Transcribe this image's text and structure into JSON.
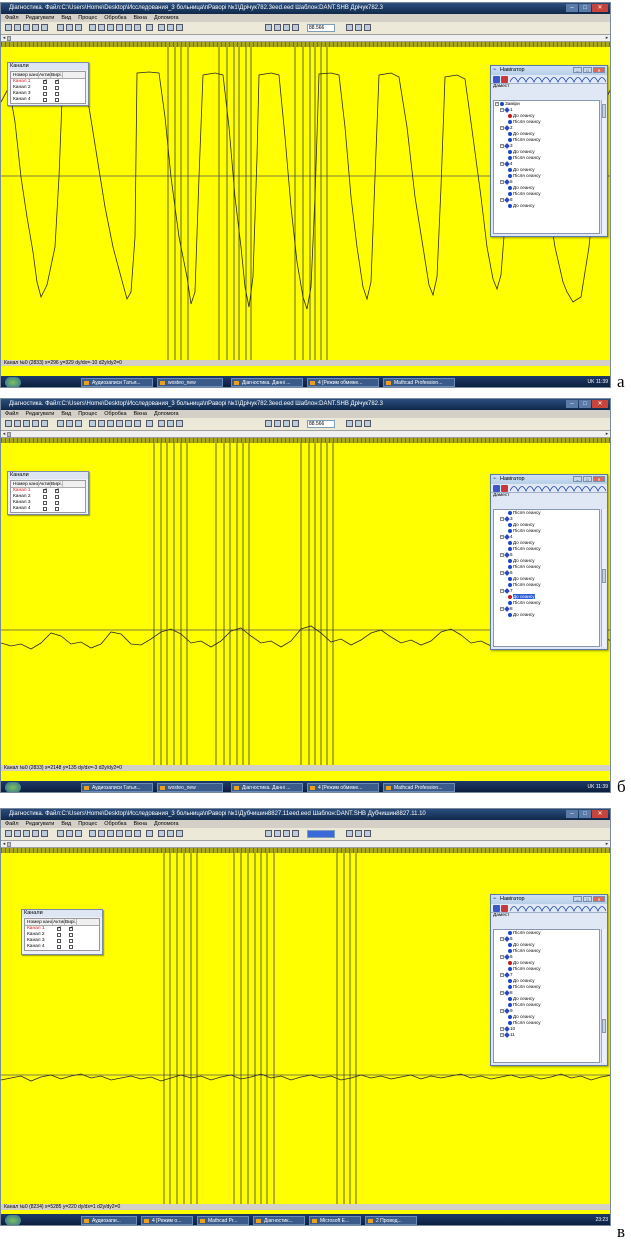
{
  "screens": [
    {
      "id": "a",
      "caption": "а",
      "title": "Діагностика. Файл:C:\\Users\\Home\\Desktop\\Исследования_3 больница\\пРавоpi №1\\Дрічук782.3eed.eed Шаблон:DANT.SHB  Дрічук782.3",
      "menu": [
        "Файл",
        "Редагувати",
        "Вид",
        "Процес",
        "Обробка",
        "Вікна",
        "Допомога"
      ],
      "zoom_value": "88.566",
      "status": "Канал №0 (2833) x=296 y=329  dy/dx=-10  d2y/dy2=0",
      "taskbar_buttons": [
        "Аудиозаписи Татья...",
        "wosteo_new",
        "Діагностика. Данні ...",
        "4 [Режим обмеже...",
        "Mathcad Profession..."
      ],
      "clock": "11:39",
      "tray_lang": "UK",
      "channels": {
        "title": "Канали",
        "headers": [
          "Номер каналу",
          "Актив...",
          "Вирі..."
        ],
        "rows": [
          {
            "name": "Канал 1",
            "active": true,
            "visible": true
          },
          {
            "name": "Канал 2",
            "active": false,
            "visible": false
          },
          {
            "name": "Канал 3",
            "active": false,
            "visible": false
          },
          {
            "name": "Канал 4",
            "active": false,
            "visible": false
          }
        ]
      },
      "navigator": {
        "title": "Навігатор",
        "label": "Дамест",
        "tree": [
          {
            "kind": "root",
            "text": "Заміри"
          },
          {
            "kind": "group",
            "text": "1"
          },
          {
            "kind": "leaf",
            "text": "До сеансу",
            "red": true
          },
          {
            "kind": "leaf",
            "text": "Після сеансу"
          },
          {
            "kind": "group",
            "text": "2"
          },
          {
            "kind": "leaf",
            "text": "До сеансу"
          },
          {
            "kind": "leaf",
            "text": "Після сеансу"
          },
          {
            "kind": "group",
            "text": "3"
          },
          {
            "kind": "leaf",
            "text": "До сеансу"
          },
          {
            "kind": "leaf",
            "text": "Після сеансу"
          },
          {
            "kind": "group",
            "text": "4"
          },
          {
            "kind": "leaf",
            "text": "До сеансу"
          },
          {
            "kind": "leaf",
            "text": "Після сеансу"
          },
          {
            "kind": "group",
            "text": "5"
          },
          {
            "kind": "leaf",
            "text": "До сеансу"
          },
          {
            "kind": "leaf",
            "text": "Після сеансу"
          },
          {
            "kind": "group",
            "text": "6"
          },
          {
            "kind": "leaf",
            "text": "До сеансу"
          }
        ]
      }
    },
    {
      "id": "b",
      "caption": "б",
      "title": "Діагностика. Файл:C:\\Users\\Home\\Desktop\\Исследования_3 больница\\пРавоpi №1\\Дрічук782.3eed.eed Шаблон:DANT.SHB  Дрічук782.3",
      "menu": [
        "Файл",
        "Редагувати",
        "Вид",
        "Процес",
        "Обробка",
        "Вікна",
        "Допомога"
      ],
      "zoom_value": "88.566",
      "status": "Канал №0 (2833) x=2148 y=135  dy/dx=-3  d2y/dy2=0",
      "taskbar_buttons": [
        "Аудиозаписи Татья...",
        "wosteo_new",
        "Діагностика. Данні ...",
        "4 [Режим обмеже...",
        "Mathcad Profession..."
      ],
      "clock": "11:39",
      "tray_lang": "UK",
      "channels": {
        "title": "Канали",
        "headers": [
          "Номер каналу",
          "Актив...",
          "Вирі..."
        ],
        "rows": [
          {
            "name": "Канал 1",
            "active": true,
            "visible": true
          },
          {
            "name": "Канал 2",
            "active": false,
            "visible": false
          },
          {
            "name": "Канал 3",
            "active": false,
            "visible": false
          },
          {
            "name": "Канал 4",
            "active": false,
            "visible": false
          }
        ]
      },
      "navigator": {
        "title": "Навігатор",
        "label": "Дамест",
        "tree": [
          {
            "kind": "leaf",
            "text": "Після сеансу"
          },
          {
            "kind": "group",
            "text": "3"
          },
          {
            "kind": "leaf",
            "text": "До сеансу"
          },
          {
            "kind": "leaf",
            "text": "Після сеансу"
          },
          {
            "kind": "group",
            "text": "4"
          },
          {
            "kind": "leaf",
            "text": "До сеансу"
          },
          {
            "kind": "leaf",
            "text": "Після сеансу"
          },
          {
            "kind": "group",
            "text": "5"
          },
          {
            "kind": "leaf",
            "text": "До сеансу"
          },
          {
            "kind": "leaf",
            "text": "Після сеансу"
          },
          {
            "kind": "group",
            "text": "6"
          },
          {
            "kind": "leaf",
            "text": "До сеансу"
          },
          {
            "kind": "leaf",
            "text": "Після сеансу"
          },
          {
            "kind": "group",
            "text": "7"
          },
          {
            "kind": "leaf",
            "text": "До сеансу",
            "red": true,
            "selected": true
          },
          {
            "kind": "leaf",
            "text": "Після сеансу"
          },
          {
            "kind": "group",
            "text": "8"
          },
          {
            "kind": "leaf",
            "text": "До сеансу"
          }
        ]
      }
    },
    {
      "id": "c",
      "caption": "в",
      "title": "Діагностика. Файл:C:\\Users\\Home\\Desktop\\Исследования_3 больница\\пРавоpi №1\\Дубчишин8827.11eed.eed Шаблон:DANT.SHB  Дубчишин8827.11.10",
      "menu": [
        "Файл",
        "Редагувати",
        "Вид",
        "Процес",
        "Обробка",
        "Вікна",
        "Допомога"
      ],
      "zoom_value": "",
      "status": "Канал №0 (8234) x=5285 y=220  dy/dx=1  d2y/dy2=0",
      "taskbar_buttons": [
        "Аудиозапи...",
        "4 [Режим о...",
        "Mathcad Pr...",
        "Діагностик...",
        "Microsoft E...",
        "2 Провод..."
      ],
      "clock": "23:23",
      "tray_lang": "",
      "channels": {
        "title": "Канали",
        "headers": [
          "Номер каналу",
          "Актив...",
          "Вирі..."
        ],
        "rows": [
          {
            "name": "Канал 1",
            "active": true,
            "visible": true
          },
          {
            "name": "Канал 2",
            "active": false,
            "visible": false
          },
          {
            "name": "Канал 3",
            "active": false,
            "visible": false
          },
          {
            "name": "Канал 4",
            "active": false,
            "visible": false
          }
        ]
      },
      "navigator": {
        "title": "Навігатор",
        "label": "Дамест",
        "tree": [
          {
            "kind": "leaf",
            "text": "Після сеансу"
          },
          {
            "kind": "group",
            "text": "5"
          },
          {
            "kind": "leaf",
            "text": "До сеансу"
          },
          {
            "kind": "leaf",
            "text": "Після сеансу"
          },
          {
            "kind": "group",
            "text": "6"
          },
          {
            "kind": "leaf",
            "text": "До сеансу",
            "red": true
          },
          {
            "kind": "leaf",
            "text": "Після сеансу"
          },
          {
            "kind": "group",
            "text": "7"
          },
          {
            "kind": "leaf",
            "text": "До сеансу"
          },
          {
            "kind": "leaf",
            "text": "Після сеансу"
          },
          {
            "kind": "group",
            "text": "8"
          },
          {
            "kind": "leaf",
            "text": "До сеансу"
          },
          {
            "kind": "leaf",
            "text": "Після сеансу"
          },
          {
            "kind": "group",
            "text": "9"
          },
          {
            "kind": "leaf",
            "text": "До сеансу"
          },
          {
            "kind": "leaf",
            "text": "Після сеансу"
          },
          {
            "kind": "group",
            "text": "10"
          },
          {
            "kind": "group",
            "text": "11"
          }
        ]
      }
    }
  ],
  "colors": {
    "plot_background": "#ffff00",
    "trace": "#2a2a2a",
    "marker_lines": "#3a3a3a"
  }
}
